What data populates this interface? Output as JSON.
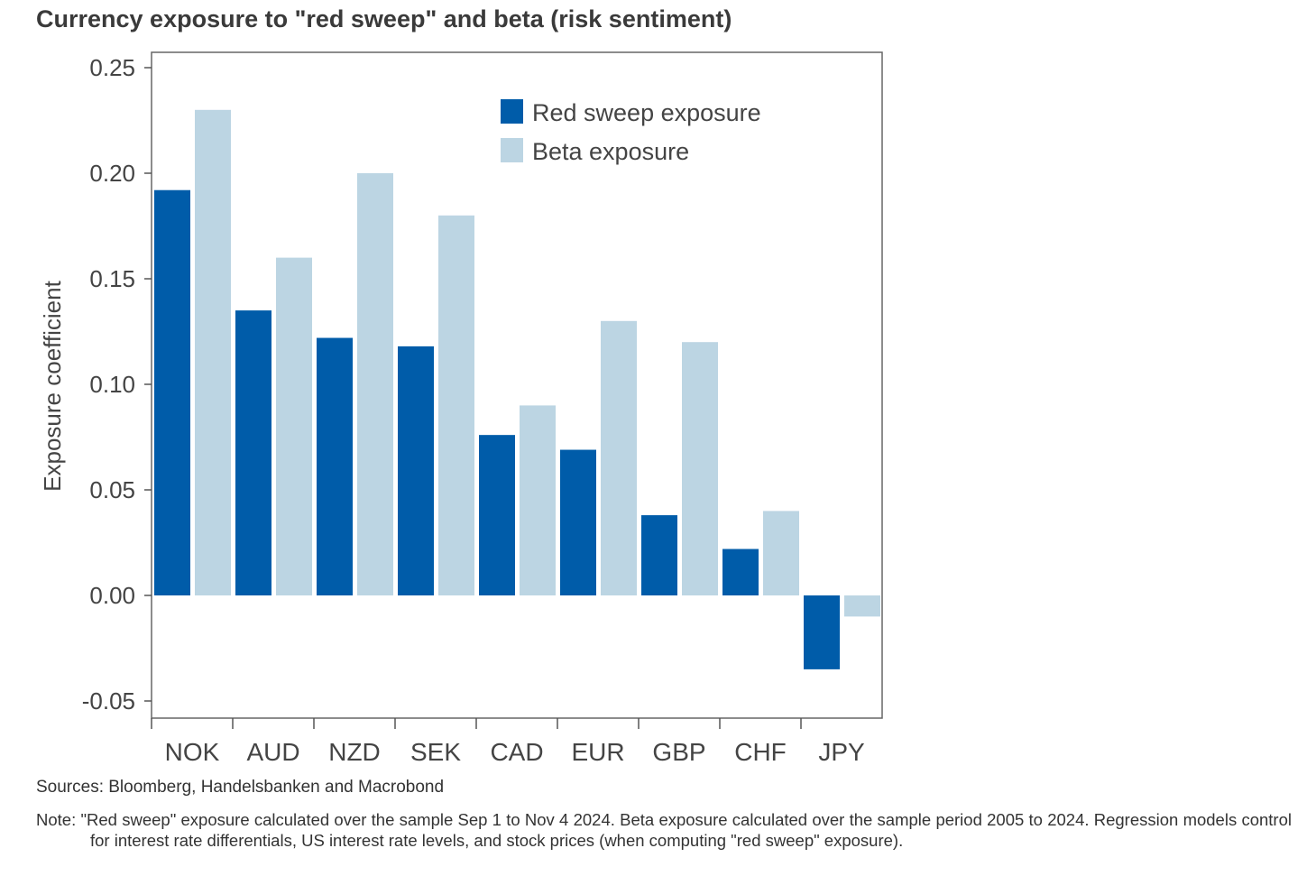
{
  "title": "Currency exposure to \"red sweep\" and beta (risk sentiment)",
  "sources": "Sources: Bloomberg, Handelsbanken and Macrobond",
  "note": "Note: \"Red sweep\" exposure calculated over the sample Sep 1 to Nov 4 2024. Beta exposure calculated over the sample period 2005 to 2024. Regression models control for interest rate differentials, US interest rate levels, and stock prices (when computing \"red sweep\" exposure).",
  "colors": {
    "red_sweep": "#005ca9",
    "beta": "#bcd5e3",
    "axis": "#555555"
  },
  "chart_data": {
    "type": "bar",
    "title": "Currency exposure to \"red sweep\" and beta (risk sentiment)",
    "xlabel": "",
    "ylabel": "Exposure coefficient",
    "ylim": [
      -0.05,
      0.25
    ],
    "yticks": [
      -0.05,
      0.0,
      0.05,
      0.1,
      0.15,
      0.2,
      0.25
    ],
    "ytick_labels": [
      "-0.05",
      "0.00",
      "0.05",
      "0.10",
      "0.15",
      "0.20",
      "0.25"
    ],
    "categories": [
      "NOK",
      "AUD",
      "NZD",
      "SEK",
      "CAD",
      "EUR",
      "GBP",
      "CHF",
      "JPY"
    ],
    "grid": false,
    "legend_position": "top-right",
    "series": [
      {
        "name": "Red sweep exposure",
        "values": [
          0.192,
          0.135,
          0.122,
          0.118,
          0.076,
          0.069,
          0.038,
          0.022,
          -0.035
        ]
      },
      {
        "name": "Beta exposure",
        "values": [
          0.23,
          0.16,
          0.2,
          0.18,
          0.09,
          0.13,
          0.12,
          0.04,
          -0.01
        ]
      }
    ]
  }
}
